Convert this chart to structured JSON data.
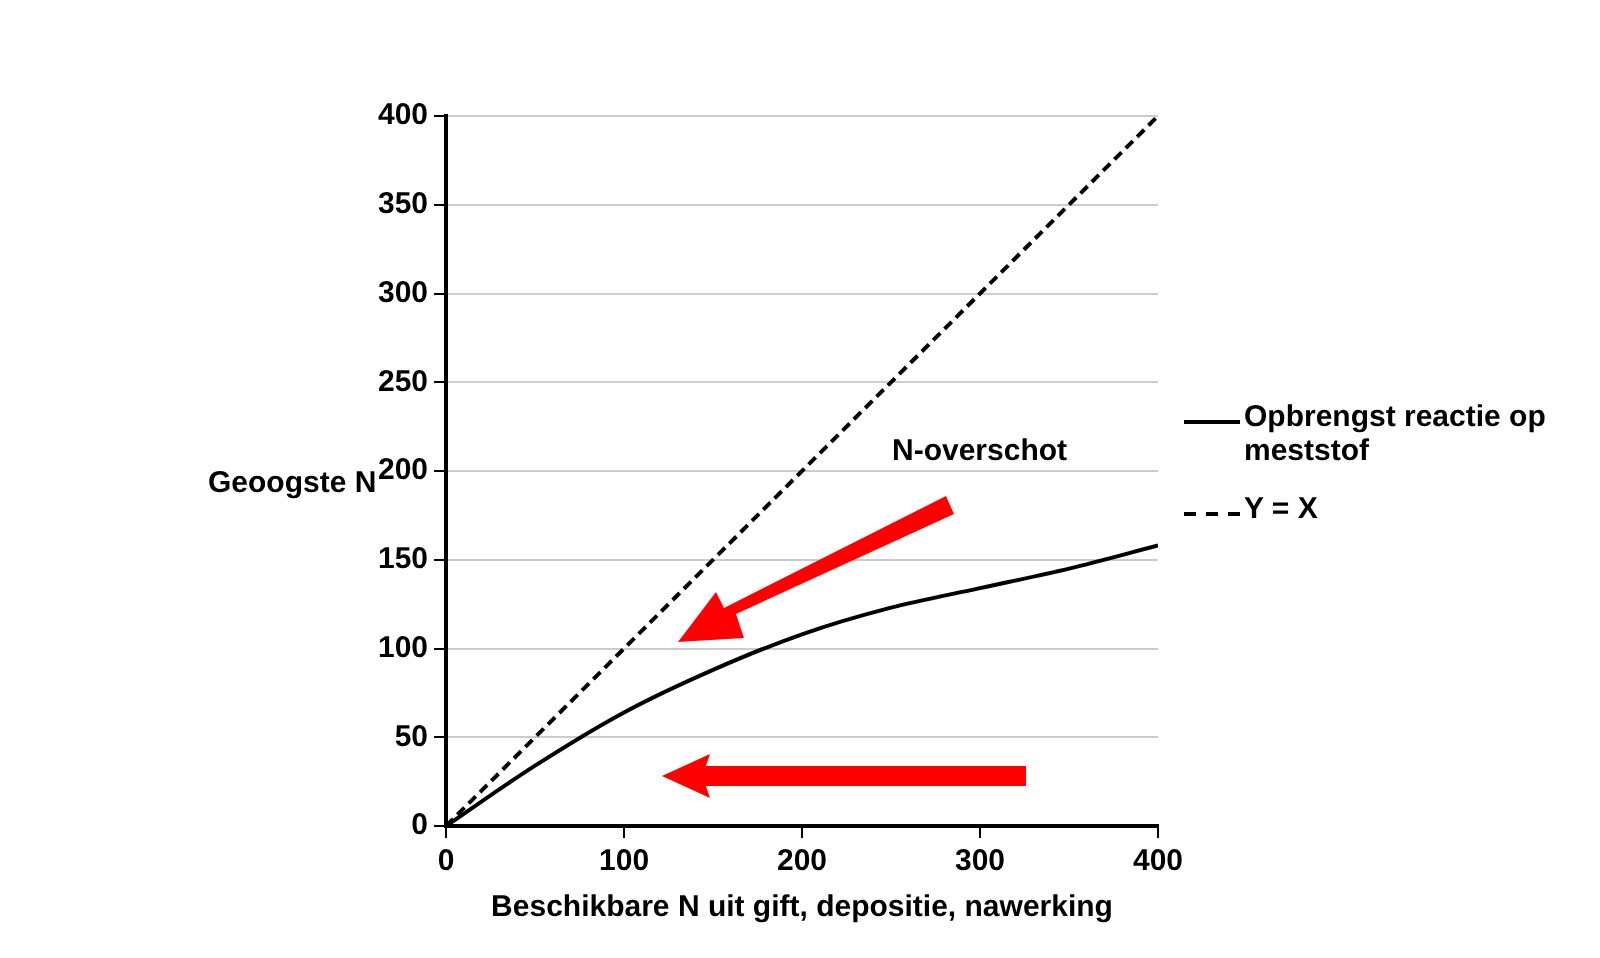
{
  "chart_data": {
    "type": "line",
    "xlabel": "Beschikbare N uit gift, depositie, nawerking",
    "ylabel": "Geoogste N",
    "xlim": [
      0,
      400
    ],
    "xticks": [
      0,
      100,
      200,
      300,
      400
    ],
    "ylim": [
      0,
      400
    ],
    "yticks": [
      0,
      50,
      100,
      150,
      200,
      250,
      300,
      350,
      400
    ],
    "grid": "y",
    "legend": "right",
    "marker": "none",
    "annotations": [
      "N-overschot"
    ],
    "series": [
      {
        "name": "Opbrengst reactie op meststof",
        "color": "#000000",
        "line_style": "solid",
        "x": [
          0,
          50,
          100,
          150,
          200,
          250,
          300,
          350,
          400
        ],
        "values": [
          0,
          34,
          64,
          88,
          108,
          123,
          134,
          145,
          158
        ]
      },
      {
        "name": "Y = X",
        "color": "#000000",
        "line_style": "dashed",
        "x": [
          0,
          400
        ],
        "values": [
          0,
          400
        ]
      }
    ]
  }
}
